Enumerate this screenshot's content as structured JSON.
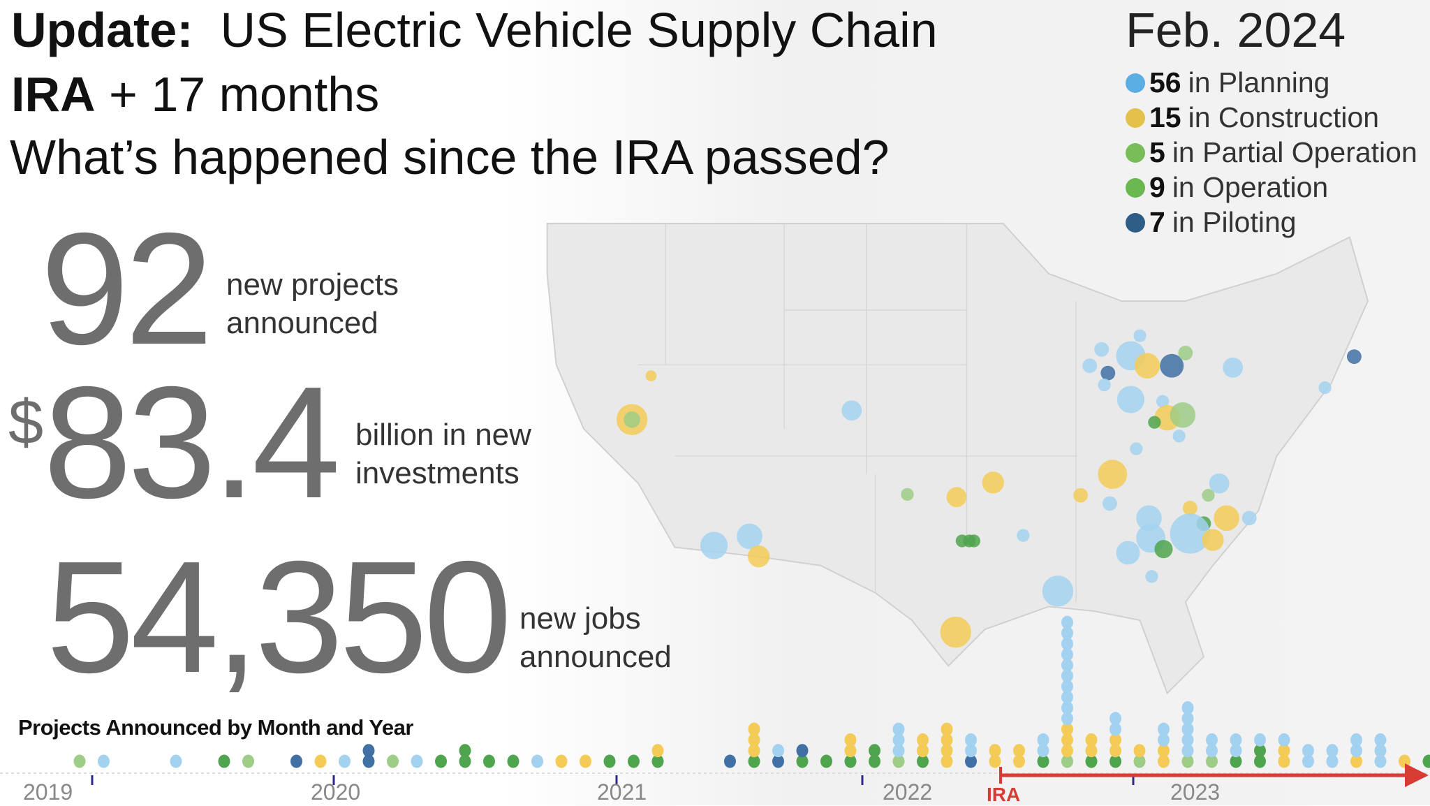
{
  "header": {
    "update_label": "Update:",
    "title": "US Electric Vehicle Supply Chain",
    "ira_label": "IRA",
    "ira_suffix": "+ 17 months",
    "question": "What’s happened since the IRA passed?",
    "date": "Feb. 2024"
  },
  "legend": [
    {
      "count": "56",
      "label": "in Planning",
      "color": "#5aaee4"
    },
    {
      "count": "15",
      "label": "in Construction",
      "color": "#e3c14b"
    },
    {
      "count": "5",
      "label": "in Partial Operation",
      "color": "#78bd58"
    },
    {
      "count": "9",
      "label": "in Operation",
      "color": "#6cb850"
    },
    {
      "count": "7",
      "label": "in Piloting",
      "color": "#2e5e86"
    }
  ],
  "stats": {
    "projects": {
      "value": "92",
      "line1": "new projects",
      "line2": "announced"
    },
    "investment": {
      "currency": "$",
      "value": "83.4",
      "line1": "billion in new",
      "line2": "investments"
    },
    "jobs": {
      "value": "54,350",
      "line1": "new jobs",
      "line2": "announced"
    }
  },
  "timeline": {
    "title": "Projects Announced by Month and Year",
    "years": [
      "2019",
      "2020",
      "2021",
      "2022",
      "2023"
    ],
    "ira_marker": "IRA",
    "status_colors": {
      "P": "#a3d2f0",
      "C": "#f5cb58",
      "PO": "#9dcd86",
      "O": "#4fa54d",
      "Pi": "#4070a4"
    },
    "columns": [
      [
        "PO"
      ],
      [
        "P"
      ],
      [],
      [],
      [
        "P"
      ],
      [],
      [
        "O"
      ],
      [
        "PO"
      ],
      [],
      [
        "Pi"
      ],
      [
        "C"
      ],
      [
        "P"
      ],
      [
        "Pi",
        "Pi"
      ],
      [
        "PO"
      ],
      [
        "P"
      ],
      [
        "O"
      ],
      [
        "O",
        "O"
      ],
      [
        "O"
      ],
      [
        "O"
      ],
      [
        "P"
      ],
      [
        "C"
      ],
      [
        "C"
      ],
      [
        "O"
      ],
      [
        "O"
      ],
      [
        "O",
        "C"
      ],
      [],
      [],
      [
        "Pi"
      ],
      [
        "O",
        "C",
        "C",
        "C"
      ],
      [
        "Pi",
        "P"
      ],
      [
        "O",
        "Pi"
      ],
      [
        "O"
      ],
      [
        "O",
        "C",
        "C"
      ],
      [
        "O",
        "O"
      ],
      [
        "PO",
        "P",
        "P",
        "P"
      ],
      [
        "O",
        "C",
        "C"
      ],
      [
        "C",
        "C",
        "C",
        "C"
      ],
      [
        "Pi",
        "P",
        "P"
      ],
      [
        "C",
        "C"
      ],
      [
        "C",
        "C"
      ],
      [
        "O",
        "P",
        "P"
      ],
      [
        "PO",
        "C",
        "C",
        "C",
        "P",
        "P",
        "P",
        "P",
        "P",
        "P",
        "P",
        "P",
        "P",
        "P"
      ],
      [
        "O",
        "C",
        "C"
      ],
      [
        "O",
        "C",
        "C",
        "P",
        "P"
      ],
      [
        "PO",
        "C"
      ],
      [
        "C",
        "C",
        "P",
        "P"
      ],
      [
        "PO",
        "P",
        "P",
        "P",
        "P",
        "P"
      ],
      [
        "PO",
        "P",
        "P"
      ],
      [
        "O",
        "P",
        "P"
      ],
      [
        "O",
        "O",
        "P"
      ],
      [
        "C",
        "C",
        "P"
      ],
      [
        "P",
        "P"
      ],
      [
        "P",
        "P"
      ],
      [
        "C",
        "P",
        "P"
      ],
      [
        "P",
        "P",
        "P"
      ],
      [
        "C"
      ],
      [
        "O"
      ]
    ]
  }
}
